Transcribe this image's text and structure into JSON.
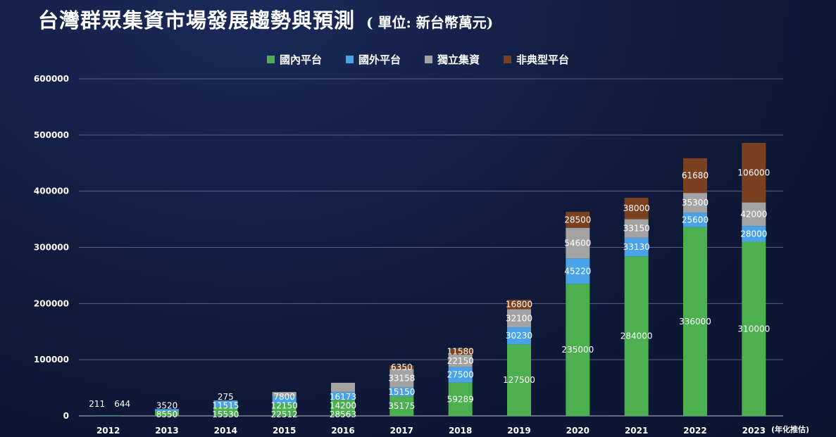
{
  "chart_data": {
    "type": "bar",
    "stacked": true,
    "title": "台灣群眾集資市場發展趨勢與預測",
    "subtitle": "( 單位: 新台幣萬元)",
    "categories": [
      "2012",
      "2013",
      "2014",
      "2015",
      "2016",
      "2017",
      "2018",
      "2019",
      "2020",
      "2021",
      "2022",
      "2023"
    ],
    "x_note": "(年化推估)",
    "ylim": [
      0,
      600000
    ],
    "yticks": [
      0,
      100000,
      200000,
      300000,
      400000,
      500000,
      600000
    ],
    "grid": true,
    "legend_position": "top-center",
    "series": [
      {
        "name": "國內平台",
        "color": "#4caf50",
        "values": [
          211,
          8550,
          15530,
          22512,
          28563,
          35175,
          59289,
          127500,
          235000,
          284000,
          336000,
          310000
        ]
      },
      {
        "name": "國外平台",
        "color": "#4aa3e8",
        "values": [
          644,
          3520,
          11515,
          12150,
          14200,
          15150,
          27500,
          30230,
          45220,
          33130,
          25600,
          28000
        ]
      },
      {
        "name": "獨立集資",
        "color": "#a3a3a3",
        "values": [
          0,
          0,
          275,
          7800,
          16173,
          33158,
          22150,
          32100,
          54600,
          33150,
          35300,
          42000
        ]
      },
      {
        "name": "非典型平台",
        "color": "#7a4020",
        "values": [
          0,
          0,
          0,
          0,
          0,
          6350,
          11580,
          16800,
          28500,
          38000,
          61680,
          106000
        ]
      }
    ],
    "labels": [
      [
        "211",
        "644"
      ],
      [
        "8550",
        "3520"
      ],
      [
        "15530",
        "11515",
        "275"
      ],
      [
        "22512",
        "12150",
        "7800"
      ],
      [
        "28563",
        "14200",
        "16173"
      ],
      [
        "35175",
        "15150",
        "33158",
        "6350"
      ],
      [
        "59289",
        "27500",
        "22150",
        "11580"
      ],
      [
        "127500",
        "30230",
        "32100",
        "16800"
      ],
      [
        "235000",
        "45220",
        "54600",
        "28500"
      ],
      [
        "284000",
        "33130",
        "33150",
        "38000"
      ],
      [
        "336000",
        "25600",
        "35300",
        "61680"
      ],
      [
        "310000",
        "28000",
        "42000",
        "106000"
      ]
    ]
  }
}
